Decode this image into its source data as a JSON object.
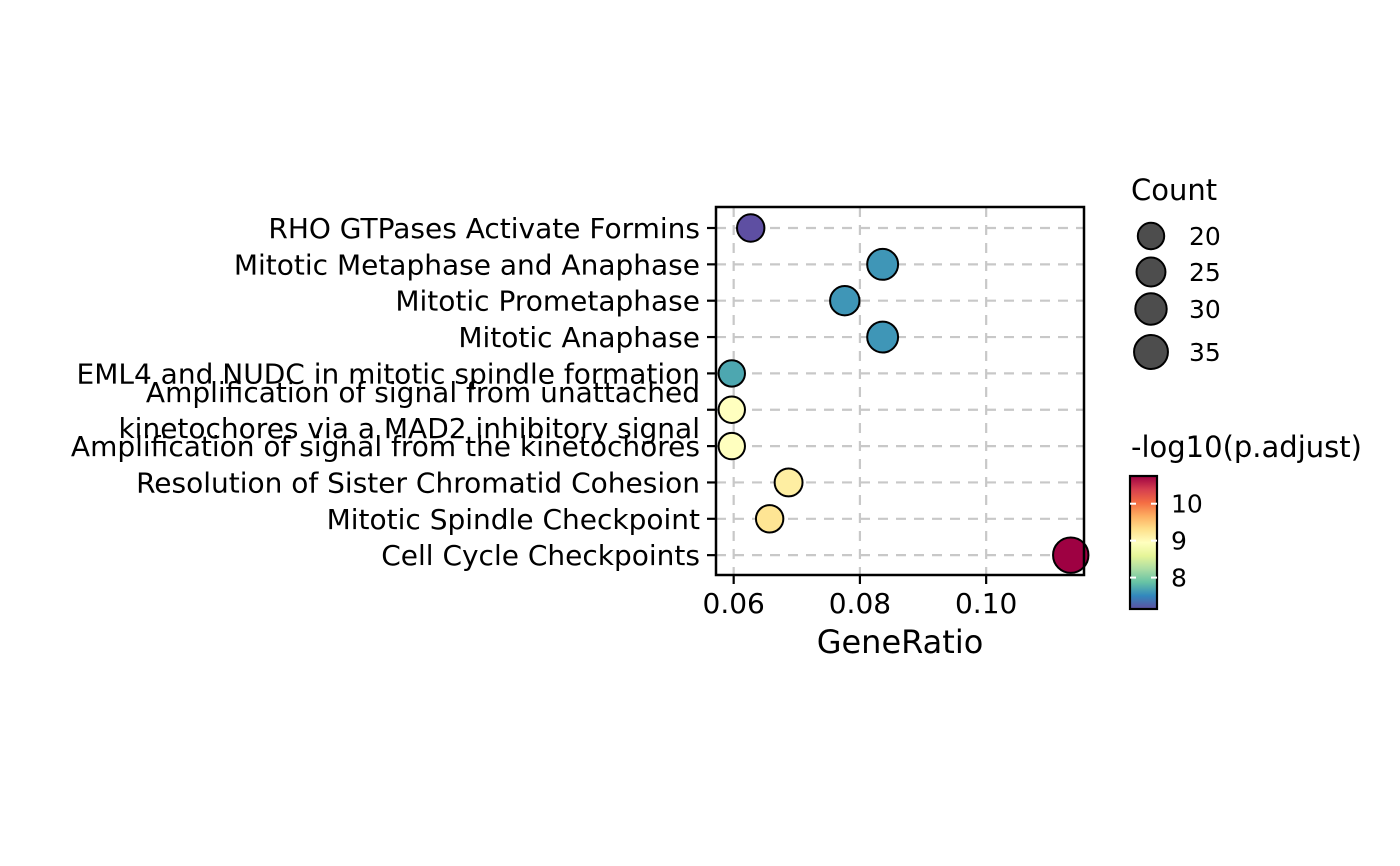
{
  "chart_data": {
    "type": "scatter",
    "title": "",
    "xlabel": "GeneRatio",
    "ylabel": "",
    "xlim": [
      0.0572,
      0.1155
    ],
    "xticks": [
      0.06,
      0.08,
      0.1
    ],
    "xtick_labels": [
      "0.06",
      "0.08",
      "0.10"
    ],
    "grid": true,
    "points": [
      {
        "category": [
          "RHO GTPases Activate Formins"
        ],
        "x": 0.0627,
        "count": 22,
        "neg_log10_padj": 7.15
      },
      {
        "category": [
          "Mitotic Metaphase and Anaphase"
        ],
        "x": 0.0836,
        "count": 29,
        "neg_log10_padj": 7.6
      },
      {
        "category": [
          "Mitotic Prometaphase"
        ],
        "x": 0.0776,
        "count": 26,
        "neg_log10_padj": 7.6
      },
      {
        "category": [
          "Mitotic Anaphase"
        ],
        "x": 0.0836,
        "count": 29,
        "neg_log10_padj": 7.6
      },
      {
        "category": [
          "EML4 and NUDC in mitotic spindle formation"
        ],
        "x": 0.0597,
        "count": 20,
        "neg_log10_padj": 7.7
      },
      {
        "category": [
          "Amplification of signal from unattached",
          "kinetochores via a MAD2 inhibitory signal"
        ],
        "x": 0.0597,
        "count": 20,
        "neg_log10_padj": 8.95
      },
      {
        "category": [
          "Amplification of signal from the kinetochores"
        ],
        "x": 0.0597,
        "count": 20,
        "neg_log10_padj": 8.95
      },
      {
        "category": [
          "Resolution of Sister Chromatid Cohesion"
        ],
        "x": 0.0687,
        "count": 23,
        "neg_log10_padj": 9.15
      },
      {
        "category": [
          "Mitotic Spindle Checkpoint"
        ],
        "x": 0.0657,
        "count": 22,
        "neg_log10_padj": 9.25
      },
      {
        "category": [
          "Cell Cycle Checkpoints"
        ],
        "x": 0.1134,
        "count": 38,
        "neg_log10_padj": 10.75
      }
    ],
    "size_legend": {
      "title": "Count",
      "items": [
        {
          "label": "20",
          "value": 20
        },
        {
          "label": "25",
          "value": 25
        },
        {
          "label": "30",
          "value": 30
        },
        {
          "label": "35",
          "value": 35
        }
      ]
    },
    "color_legend": {
      "title": "-log10(p.adjust)",
      "range": [
        7.15,
        10.75
      ],
      "ticks": [
        {
          "label": "8",
          "value": 8
        },
        {
          "label": "9",
          "value": 9
        },
        {
          "label": "10",
          "value": 10
        }
      ],
      "palette": [
        "#5e4fa2",
        "#3288bd",
        "#66c2a5",
        "#abdda4",
        "#e6f598",
        "#ffffbf",
        "#fee08b",
        "#fdae61",
        "#f46d43",
        "#d53e4f",
        "#9e0142"
      ]
    },
    "marker_fill_count_legend": "#4d4d4d"
  }
}
